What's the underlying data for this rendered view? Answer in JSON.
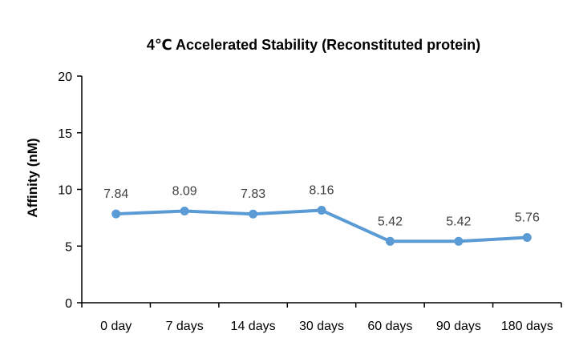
{
  "chart_data": {
    "type": "line",
    "title": "4℃ Accelerated Stability (Reconstituted protein)",
    "xlabel": "",
    "ylabel": "Affinity (nM)",
    "categories": [
      "0 day",
      "7 days",
      "14 days",
      "30 days",
      "60 days",
      "90 days",
      "180 days"
    ],
    "series": [
      {
        "values": [
          7.84,
          8.09,
          7.83,
          8.16,
          5.42,
          5.42,
          5.76
        ],
        "color": "#5b9bd5"
      }
    ],
    "data_labels": [
      "7.84",
      "8.09",
      "7.83",
      "8.16",
      "5.42",
      "5.42",
      "5.76"
    ],
    "ylim": [
      0,
      20
    ],
    "yticks": [
      0,
      5,
      10,
      15,
      20
    ],
    "grid": false,
    "legend": "none"
  }
}
